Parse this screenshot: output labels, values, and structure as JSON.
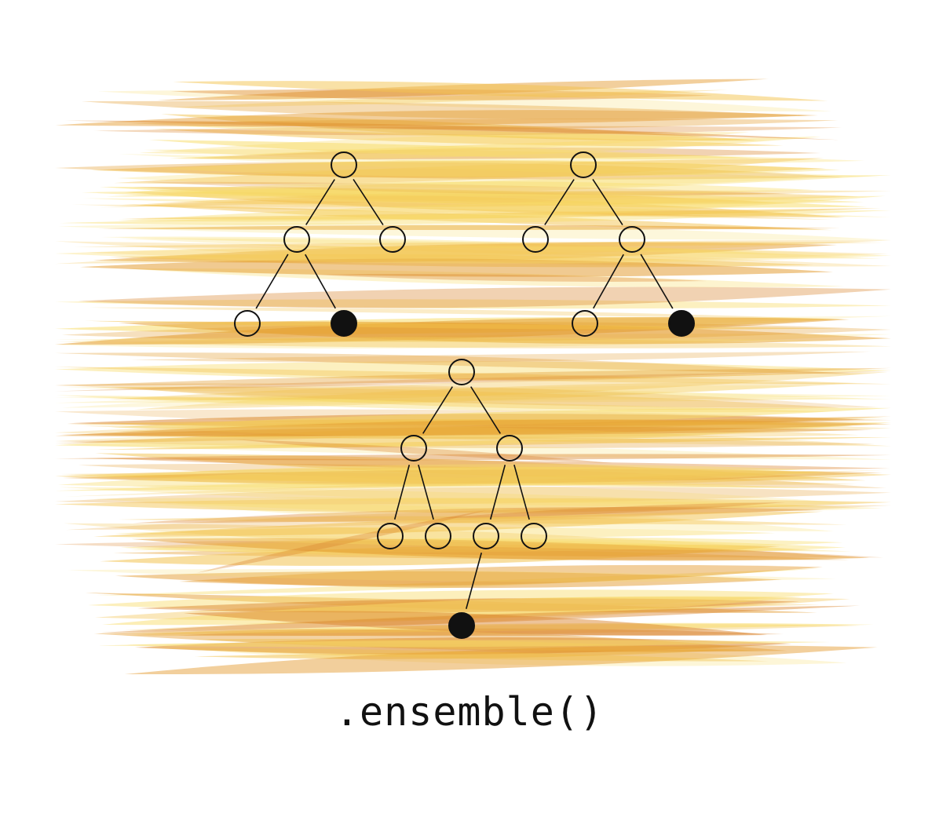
{
  "caption": ".ensemble()",
  "colors": {
    "wash_light": "#f8dc6a",
    "wash_mid": "#f2c14a",
    "wash_dark": "#e39a2c",
    "wash_deep": "#d9822a",
    "node_stroke": "#111111",
    "node_fill_empty": "#ffffff",
    "node_fill_leaf": "#111111"
  },
  "trees": [
    {
      "name": "tree-left",
      "nodes": [
        {
          "id": "root",
          "filled": false
        },
        {
          "id": "l",
          "filled": false
        },
        {
          "id": "r",
          "filled": false
        },
        {
          "id": "ll",
          "filled": false
        },
        {
          "id": "lr",
          "filled": true
        }
      ],
      "edges": [
        [
          "root",
          "l"
        ],
        [
          "root",
          "r"
        ],
        [
          "l",
          "ll"
        ],
        [
          "l",
          "lr"
        ]
      ]
    },
    {
      "name": "tree-right",
      "nodes": [
        {
          "id": "root",
          "filled": false
        },
        {
          "id": "l",
          "filled": false
        },
        {
          "id": "r",
          "filled": false
        },
        {
          "id": "rl",
          "filled": false
        },
        {
          "id": "rr",
          "filled": true
        }
      ],
      "edges": [
        [
          "root",
          "l"
        ],
        [
          "root",
          "r"
        ],
        [
          "r",
          "rl"
        ],
        [
          "r",
          "rr"
        ]
      ]
    },
    {
      "name": "tree-bottom",
      "nodes": [
        {
          "id": "root",
          "filled": false
        },
        {
          "id": "l",
          "filled": false
        },
        {
          "id": "r",
          "filled": false
        },
        {
          "id": "ll",
          "filled": false
        },
        {
          "id": "lr",
          "filled": false
        },
        {
          "id": "rl",
          "filled": false
        },
        {
          "id": "rr",
          "filled": false
        },
        {
          "id": "rll",
          "filled": true
        }
      ],
      "edges": [
        [
          "root",
          "l"
        ],
        [
          "root",
          "r"
        ],
        [
          "l",
          "ll"
        ],
        [
          "l",
          "lr"
        ],
        [
          "r",
          "rl"
        ],
        [
          "r",
          "rr"
        ],
        [
          "rl",
          "rll"
        ]
      ]
    }
  ]
}
